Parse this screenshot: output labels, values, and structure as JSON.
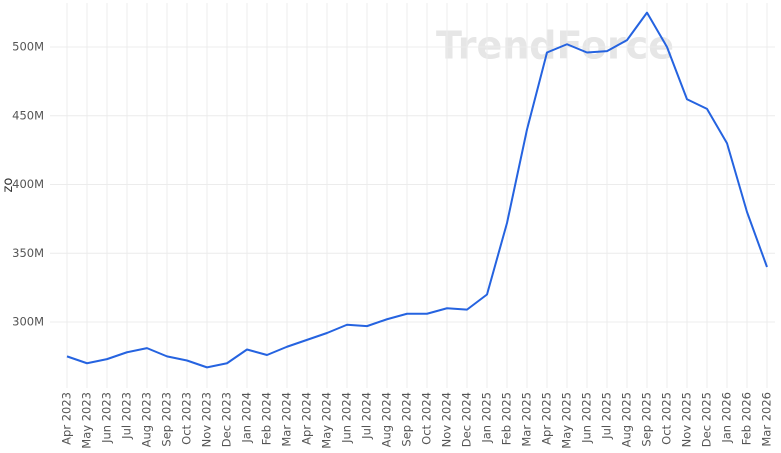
{
  "chart_data": {
    "type": "line",
    "watermark": "TrendForce",
    "y_label": "oz",
    "categories": [
      "Apr 2023",
      "May 2023",
      "Jun 2023",
      "Jul 2023",
      "Aug 2023",
      "Sep 2023",
      "Oct 2023",
      "Nov 2023",
      "Dec 2023",
      "Jan 2024",
      "Feb 2024",
      "Mar 2024",
      "Apr 2024",
      "May 2024",
      "Jun 2024",
      "Jul 2024",
      "Aug 2024",
      "Sep 2024",
      "Oct 2024",
      "Nov 2024",
      "Dec 2024",
      "Jan 2025",
      "Feb 2025",
      "Mar 2025",
      "Apr 2025",
      "May 2025",
      "Jun 2025",
      "Jul 2025",
      "Aug 2025",
      "Sep 2025",
      "Oct 2025",
      "Nov 2025",
      "Dec 2025",
      "Jan 2026",
      "Feb 2026",
      "Mar 2026"
    ],
    "values": [
      275000000,
      270000000,
      273000000,
      278000000,
      281000000,
      275000000,
      272000000,
      267000000,
      270000000,
      280000000,
      276000000,
      282000000,
      287000000,
      292000000,
      298000000,
      297000000,
      302000000,
      306000000,
      306000000,
      310000000,
      309000000,
      320000000,
      372000000,
      440000000,
      496000000,
      502000000,
      496000000,
      497000000,
      505000000,
      525000000,
      500000000,
      462000000,
      455000000,
      430000000,
      380000000,
      340000000
    ],
    "color": "#2563e0",
    "ylim": [
      252000000,
      532000000
    ],
    "yticks": [
      {
        "value": 300000000,
        "label": "300M"
      },
      {
        "value": 350000000,
        "label": "350M"
      },
      {
        "value": 400000000,
        "label": "400M"
      },
      {
        "value": 450000000,
        "label": "450M"
      },
      {
        "value": 500000000,
        "label": "500M"
      }
    ],
    "grid": true
  }
}
